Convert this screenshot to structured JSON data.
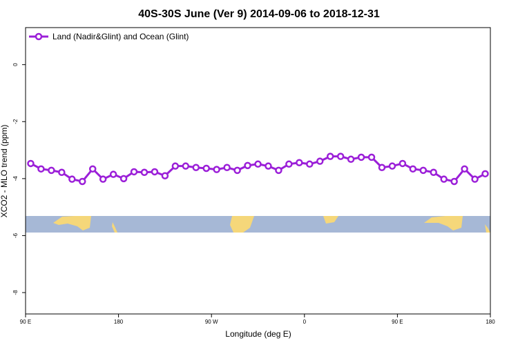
{
  "chart_data": {
    "type": "line",
    "title": "40S-30S June (Ver 9)   2014-09-06 to 2018-12-31",
    "x_label": "Longitude (deg E)",
    "y_label": "XCO2 - MLO trend (ppm)",
    "x": [
      95,
      105,
      115,
      125,
      135,
      145,
      155,
      165,
      175,
      185,
      195,
      205,
      215,
      225,
      235,
      245,
      255,
      265,
      275,
      285,
      295,
      305,
      315,
      325,
      335,
      345,
      355,
      365,
      375,
      385,
      395,
      405,
      415,
      425,
      435,
      445,
      455,
      465,
      475,
      485,
      495,
      505,
      515,
      525,
      535
    ],
    "series": [
      {
        "name": "Land (Nadir&Glint) and Ocean (Glint)",
        "color": "#9b1fd8",
        "values": [
          -3.47,
          -3.66,
          -3.71,
          -3.78,
          -4.02,
          -4.1,
          -3.66,
          -4.02,
          -3.85,
          -4.0,
          -3.76,
          -3.78,
          -3.76,
          -3.9,
          -3.56,
          -3.56,
          -3.61,
          -3.64,
          -3.68,
          -3.61,
          -3.71,
          -3.54,
          -3.49,
          -3.56,
          -3.71,
          -3.49,
          -3.44,
          -3.49,
          -3.39,
          -3.22,
          -3.22,
          -3.32,
          -3.25,
          -3.25,
          -3.61,
          -3.56,
          -3.47,
          -3.66,
          -3.71,
          -3.78,
          -4.02,
          -4.1,
          -3.66,
          -4.02,
          -3.83
        ]
      }
    ],
    "xlim": [
      90,
      540
    ],
    "xticks": [
      {
        "value": 90,
        "label": "90 E"
      },
      180,
      {
        "value": 270,
        "label": "90 W"
      },
      {
        "value": 360,
        "label": "0"
      },
      {
        "value": 450,
        "label": "90 E"
      },
      {
        "value": 540,
        "label": "180"
      }
    ],
    "ylim": [
      -8.75,
      1.3
    ],
    "yticks": [
      0,
      -2,
      -4,
      -6,
      -8
    ],
    "legend": "top-left"
  }
}
